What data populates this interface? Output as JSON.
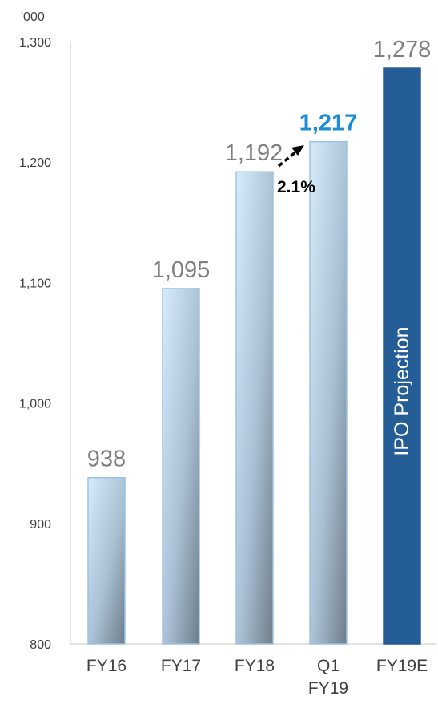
{
  "chart_data": {
    "type": "bar",
    "unit_label": "'000",
    "categories": [
      "FY16",
      "FY17",
      "FY18",
      "Q1 FY19",
      "FY19E"
    ],
    "values": [
      938,
      1095,
      1192,
      1217,
      1278
    ],
    "data_labels": [
      "938",
      "1,095",
      "1,192",
      "1,217",
      "1,278"
    ],
    "highlight_index": 3,
    "projection_index": 4,
    "projection_label": "IPO Projection",
    "growth_annotation": "2.1%",
    "ylim": [
      800,
      1300
    ],
    "yticks": [
      800,
      900,
      1000,
      1100,
      1200,
      1300
    ],
    "ytick_labels": [
      "800",
      "900",
      "1,000",
      "1,100",
      "1,200",
      "1,300"
    ],
    "grid": false,
    "legend": "none",
    "colors": {
      "bar_light": "#cfe6f7",
      "bar_dark": "#7f8c98",
      "projection": "#255d96",
      "highlight_label": "#1f8dd6",
      "label_gray": "#7f7f7f"
    }
  }
}
